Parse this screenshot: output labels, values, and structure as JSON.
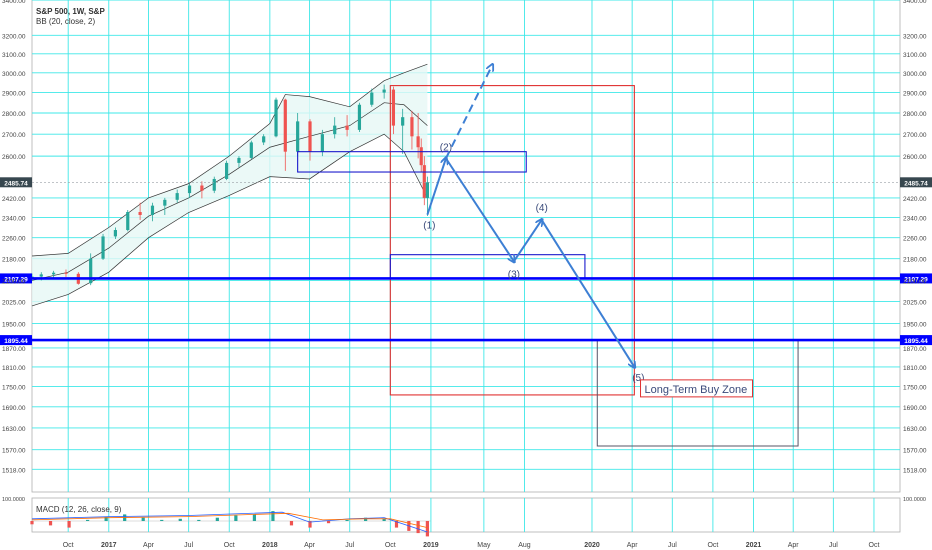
{
  "header": {
    "symbol_line": "S&P 500, 1W, S&P",
    "indicator_line": "BB (20, close, 2)"
  },
  "macd": {
    "label": "MACD (12, 26, close, 9)",
    "axis_label": "100.0000"
  },
  "colors": {
    "grid": "#3ee8e8",
    "up_candle": "#26a69a",
    "down_candle": "#ef5350",
    "wave_arrow": "#3d7fd4",
    "level_line": "#0000ff",
    "box_red": "#e03030",
    "box_blue": "#1a1acc",
    "bb_band": "#333333",
    "bb_fill": "#e6f7f5",
    "price_tag": "#37474f",
    "level_tag": "#0000ff"
  },
  "chart_data": {
    "type": "candlestick",
    "title": "S&P 500, 1W, S&P",
    "indicators": [
      "BB (20, close, 2)",
      "MACD (12, 26, close, 9)"
    ],
    "y_axis": {
      "scale": "log",
      "ticks": [
        1518.0,
        1570.0,
        1630.0,
        1690.0,
        1750.0,
        1810.0,
        1870.0,
        1950.0,
        2025.0,
        2100.0,
        2180.0,
        2260.0,
        2340.0,
        2420.0,
        2600.0,
        2700.0,
        2800.0,
        2900.0,
        3000.0,
        3100.0,
        3200.0,
        3400.0
      ],
      "tick_labels": [
        "1518.00",
        "1570.00",
        "1630.00",
        "1690.00",
        "1750.00",
        "1810.00",
        "1870.00",
        "1950.00",
        "2025.00",
        "2100.00",
        "2180.00",
        "2260.00",
        "2340.00",
        "2420.00",
        "2600.00",
        "2700.00",
        "2800.00",
        "2900.00",
        "3000.00",
        "3100.00",
        "3200.00",
        "3400.00"
      ],
      "range": [
        1460,
        3400
      ]
    },
    "x_axis": {
      "tick_labels": [
        "Oct",
        "2017",
        "Apr",
        "Jul",
        "Oct",
        "2018",
        "Apr",
        "Jul",
        "Oct",
        "2019",
        "May",
        "Aug",
        "2020",
        "Apr",
        "Jul",
        "Oct",
        "2021",
        "Apr",
        "Jul",
        "Oct"
      ],
      "tick_dates": [
        "2016-10-01",
        "2017-01-01",
        "2017-04-01",
        "2017-07-01",
        "2017-10-01",
        "2018-01-01",
        "2018-04-01",
        "2018-07-01",
        "2018-10-01",
        "2019-01-01",
        "2019-05-01",
        "2019-08-01",
        "2020-01-01",
        "2020-04-01",
        "2020-07-01",
        "2020-10-01",
        "2021-01-01",
        "2021-04-01",
        "2021-07-01",
        "2021-10-01"
      ],
      "range": [
        "2016-07-11",
        "2021-11-29"
      ]
    },
    "price_line": {
      "value": 2485.74,
      "label": "2485.74"
    },
    "horizontal_levels": [
      {
        "value": 2107.29,
        "label": "2107.29"
      },
      {
        "value": 1895.44,
        "label": "1895.44"
      }
    ],
    "wave_points": [
      {
        "label": "(1)",
        "date": "2018-12-24",
        "price": 2351
      },
      {
        "label": "(2)",
        "date": "2019-02-04",
        "price": 2590
      },
      {
        "label": "(3)",
        "date": "2019-07-08",
        "price": 2170
      },
      {
        "label": "(4)",
        "date": "2019-09-09",
        "price": 2330
      },
      {
        "label": "(5)",
        "date": "2020-04-06",
        "price": 1810
      }
    ],
    "wave_path": [
      [
        "2018-12-24",
        2351
      ],
      [
        "2019-02-04",
        2590
      ],
      [
        "2019-07-08",
        2170
      ],
      [
        "2019-09-09",
        2330
      ],
      [
        "2020-04-06",
        1810
      ]
    ],
    "alt_path": [
      [
        "2019-02-04",
        2590
      ],
      [
        "2019-05-20",
        3040
      ]
    ],
    "boxes": [
      {
        "color": "red",
        "from": [
          "2018-10-01",
          2935
        ],
        "to": [
          "2020-04-06",
          1725
        ]
      },
      {
        "color": "blue",
        "from": [
          "2018-03-05",
          2620
        ],
        "to": [
          "2019-08-05",
          2530
        ]
      },
      {
        "color": "blue",
        "from": [
          "2018-10-01",
          2195
        ],
        "to": [
          "2019-12-16",
          2107.29
        ]
      },
      {
        "color": "gray",
        "from": [
          "2020-01-13",
          1895.44
        ],
        "to": [
          "2021-04-12",
          1580
        ]
      }
    ],
    "zone_label": {
      "text": "Long-Term Buy Zone",
      "date": "2020-04-20",
      "price": 1740
    },
    "candles": [
      {
        "date": "2016-07-11",
        "o": 2110,
        "h": 2125,
        "l": 2098,
        "c": 2114
      },
      {
        "date": "2016-08-01",
        "o": 2114,
        "h": 2130,
        "l": 2100,
        "c": 2122
      },
      {
        "date": "2016-08-29",
        "o": 2122,
        "h": 2135,
        "l": 2110,
        "c": 2128
      },
      {
        "date": "2016-09-26",
        "o": 2128,
        "h": 2140,
        "l": 2112,
        "c": 2124
      },
      {
        "date": "2016-10-24",
        "o": 2124,
        "h": 2130,
        "l": 2085,
        "c": 2088
      },
      {
        "date": "2016-11-21",
        "o": 2090,
        "h": 2200,
        "l": 2083,
        "c": 2180
      },
      {
        "date": "2016-12-19",
        "o": 2180,
        "h": 2275,
        "l": 2175,
        "c": 2265
      },
      {
        "date": "2017-01-16",
        "o": 2265,
        "h": 2300,
        "l": 2255,
        "c": 2290
      },
      {
        "date": "2017-02-13",
        "o": 2290,
        "h": 2370,
        "l": 2285,
        "c": 2362
      },
      {
        "date": "2017-03-13",
        "o": 2362,
        "h": 2400,
        "l": 2330,
        "c": 2350
      },
      {
        "date": "2017-04-10",
        "o": 2350,
        "h": 2400,
        "l": 2325,
        "c": 2388
      },
      {
        "date": "2017-05-08",
        "o": 2388,
        "h": 2420,
        "l": 2350,
        "c": 2412
      },
      {
        "date": "2017-06-05",
        "o": 2412,
        "h": 2455,
        "l": 2400,
        "c": 2440
      },
      {
        "date": "2017-07-03",
        "o": 2440,
        "h": 2480,
        "l": 2420,
        "c": 2472
      },
      {
        "date": "2017-07-31",
        "o": 2472,
        "h": 2490,
        "l": 2418,
        "c": 2450
      },
      {
        "date": "2017-08-28",
        "o": 2450,
        "h": 2510,
        "l": 2440,
        "c": 2500
      },
      {
        "date": "2017-09-25",
        "o": 2500,
        "h": 2580,
        "l": 2495,
        "c": 2570
      },
      {
        "date": "2017-10-23",
        "o": 2570,
        "h": 2600,
        "l": 2550,
        "c": 2592
      },
      {
        "date": "2017-11-20",
        "o": 2592,
        "h": 2670,
        "l": 2585,
        "c": 2662
      },
      {
        "date": "2017-12-18",
        "o": 2662,
        "h": 2700,
        "l": 2650,
        "c": 2690
      },
      {
        "date": "2018-01-15",
        "o": 2690,
        "h": 2875,
        "l": 2685,
        "c": 2865
      },
      {
        "date": "2018-02-05",
        "o": 2865,
        "h": 2870,
        "l": 2535,
        "c": 2620
      },
      {
        "date": "2018-03-05",
        "o": 2620,
        "h": 2800,
        "l": 2600,
        "c": 2760
      },
      {
        "date": "2018-04-02",
        "o": 2760,
        "h": 2770,
        "l": 2580,
        "c": 2620
      },
      {
        "date": "2018-04-30",
        "o": 2620,
        "h": 2720,
        "l": 2600,
        "c": 2700
      },
      {
        "date": "2018-05-28",
        "o": 2700,
        "h": 2780,
        "l": 2680,
        "c": 2740
      },
      {
        "date": "2018-06-25",
        "o": 2740,
        "h": 2790,
        "l": 2690,
        "c": 2720
      },
      {
        "date": "2018-07-23",
        "o": 2720,
        "h": 2850,
        "l": 2710,
        "c": 2840
      },
      {
        "date": "2018-08-20",
        "o": 2840,
        "h": 2920,
        "l": 2830,
        "c": 2900
      },
      {
        "date": "2018-09-17",
        "o": 2900,
        "h": 2940,
        "l": 2870,
        "c": 2915
      },
      {
        "date": "2018-10-08",
        "o": 2915,
        "h": 2930,
        "l": 2700,
        "c": 2740
      },
      {
        "date": "2018-10-29",
        "o": 2740,
        "h": 2820,
        "l": 2610,
        "c": 2780
      },
      {
        "date": "2018-11-19",
        "o": 2780,
        "h": 2810,
        "l": 2630,
        "c": 2690
      },
      {
        "date": "2018-12-03",
        "o": 2690,
        "h": 2800,
        "l": 2590,
        "c": 2640
      },
      {
        "date": "2018-12-10",
        "o": 2640,
        "h": 2680,
        "l": 2530,
        "c": 2560
      },
      {
        "date": "2018-12-17",
        "o": 2560,
        "h": 2600,
        "l": 2390,
        "c": 2420
      },
      {
        "date": "2018-12-24",
        "o": 2420,
        "h": 2510,
        "l": 2346,
        "c": 2485.74
      }
    ],
    "bollinger": {
      "upper": [
        [
          "2016-07-11",
          2190
        ],
        [
          "2016-10-01",
          2200
        ],
        [
          "2017-01-01",
          2300
        ],
        [
          "2017-04-01",
          2420
        ],
        [
          "2017-07-01",
          2480
        ],
        [
          "2017-10-01",
          2600
        ],
        [
          "2018-01-01",
          2750
        ],
        [
          "2018-02-05",
          2890
        ],
        [
          "2018-04-01",
          2880
        ],
        [
          "2018-07-01",
          2830
        ],
        [
          "2018-09-17",
          2960
        ],
        [
          "2018-11-01",
          3000
        ],
        [
          "2018-12-24",
          3045
        ]
      ],
      "middle": [
        [
          "2016-07-11",
          2100
        ],
        [
          "2016-10-01",
          2130
        ],
        [
          "2017-01-01",
          2220
        ],
        [
          "2017-04-01",
          2345
        ],
        [
          "2017-07-01",
          2420
        ],
        [
          "2017-10-01",
          2520
        ],
        [
          "2018-01-01",
          2640
        ],
        [
          "2018-04-01",
          2690
        ],
        [
          "2018-07-01",
          2740
        ],
        [
          "2018-09-17",
          2850
        ],
        [
          "2018-11-01",
          2840
        ],
        [
          "2018-12-24",
          2740
        ]
      ],
      "lower": [
        [
          "2016-07-11",
          2010
        ],
        [
          "2016-10-01",
          2050
        ],
        [
          "2017-01-01",
          2130
        ],
        [
          "2017-04-01",
          2260
        ],
        [
          "2017-07-01",
          2360
        ],
        [
          "2017-10-01",
          2430
        ],
        [
          "2018-01-01",
          2510
        ],
        [
          "2018-04-01",
          2500
        ],
        [
          "2018-07-01",
          2620
        ],
        [
          "2018-09-17",
          2700
        ],
        [
          "2018-11-01",
          2620
        ],
        [
          "2018-12-24",
          2420
        ]
      ]
    },
    "macd_series": {
      "histogram": [
        [
          "2016-07-11",
          -3
        ],
        [
          "2016-08-22",
          -4
        ],
        [
          "2016-10-03",
          -6
        ],
        [
          "2016-11-14",
          1
        ],
        [
          "2016-12-26",
          4
        ],
        [
          "2017-02-06",
          6
        ],
        [
          "2017-03-20",
          3
        ],
        [
          "2017-05-01",
          1
        ],
        [
          "2017-06-12",
          2
        ],
        [
          "2017-07-24",
          1
        ],
        [
          "2017-09-04",
          3
        ],
        [
          "2017-10-16",
          5
        ],
        [
          "2017-11-27",
          6
        ],
        [
          "2018-01-08",
          9
        ],
        [
          "2018-02-19",
          -4
        ],
        [
          "2018-04-02",
          -6
        ],
        [
          "2018-05-14",
          -2
        ],
        [
          "2018-06-25",
          1
        ],
        [
          "2018-08-06",
          3
        ],
        [
          "2018-09-17",
          2
        ],
        [
          "2018-10-15",
          -6
        ],
        [
          "2018-11-12",
          -9
        ],
        [
          "2018-12-03",
          -11
        ],
        [
          "2018-12-24",
          -14
        ]
      ],
      "macd_line": [
        [
          "2016-07-11",
          2
        ],
        [
          "2017-01-01",
          4
        ],
        [
          "2017-07-01",
          5
        ],
        [
          "2018-01-29",
          8
        ],
        [
          "2018-04-01",
          -1
        ],
        [
          "2018-07-01",
          2
        ],
        [
          "2018-09-17",
          3
        ],
        [
          "2018-12-24",
          -10
        ]
      ],
      "signal_line": [
        [
          "2016-07-11",
          1
        ],
        [
          "2017-01-01",
          3
        ],
        [
          "2017-07-01",
          4
        ],
        [
          "2018-02-12",
          7
        ],
        [
          "2018-05-01",
          1
        ],
        [
          "2018-08-01",
          2
        ],
        [
          "2018-10-01",
          2
        ],
        [
          "2018-12-24",
          -6
        ]
      ]
    }
  }
}
